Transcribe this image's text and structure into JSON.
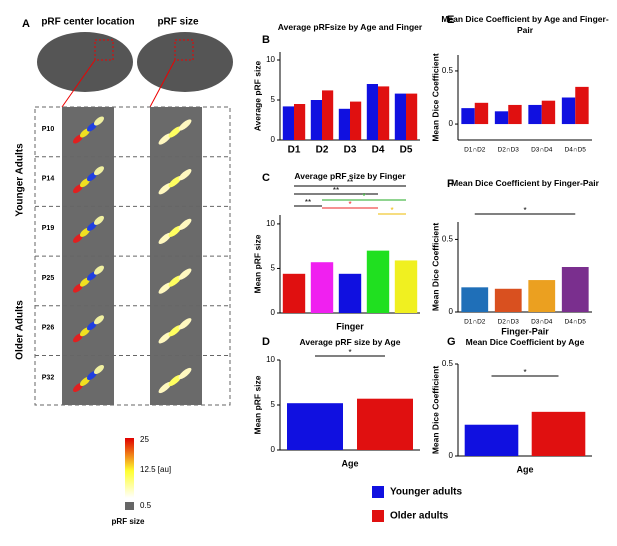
{
  "panel_labels": [
    "A",
    "B",
    "C",
    "D",
    "E",
    "F",
    "G"
  ],
  "panel_a": {
    "column_titles": [
      "pRF center location",
      "pRF size"
    ],
    "rows": [
      "P10",
      "P14",
      "P19",
      "P25",
      "P26",
      "P32"
    ],
    "groups": [
      "Younger Adults",
      "Older Adults"
    ],
    "colorbar": {
      "labels": [
        "25",
        "12.5 [au]",
        "0.5"
      ],
      "title": "pRF size"
    }
  },
  "chart_data": [
    {
      "type": "bar",
      "title": "Average pRFsize by Age and Finger",
      "ylabel": "Average pRF size",
      "categories": [
        "D1",
        "D2",
        "D3",
        "D4",
        "D5"
      ],
      "series": [
        {
          "name": "Younger adults",
          "color": "#1010e0",
          "values": [
            4.2,
            5.0,
            3.9,
            7.0,
            5.8
          ]
        },
        {
          "name": "Older adults",
          "color": "#e01010",
          "values": [
            4.5,
            6.2,
            4.8,
            6.7,
            5.8
          ]
        }
      ],
      "ylim": [
        0,
        11
      ],
      "yticks": [
        0,
        5,
        10
      ],
      "legend": "bottom"
    },
    {
      "type": "bar",
      "title": "Average pRF size by Finger",
      "ylabel": "Mean pRF size",
      "xlabel": "Finger",
      "categories": [
        null,
        null,
        null,
        null,
        null
      ],
      "values": [
        4.4,
        5.7,
        4.4,
        7.0,
        5.9
      ],
      "colors": [
        "#e01010",
        "#f020f0",
        "#1010e0",
        "#20e020",
        "#f0f020"
      ],
      "ylim": [
        0,
        11
      ],
      "yticks": [
        0,
        5,
        10
      ],
      "annotations": [
        "**",
        "**",
        "**",
        "*",
        "*",
        "*"
      ]
    },
    {
      "type": "bar",
      "title": "Average pRF size by Age",
      "ylabel": "Mean pRF size",
      "xlabel": "Age",
      "categories": [
        null,
        null
      ],
      "values": [
        5.2,
        5.7
      ],
      "colors": [
        "#1010e0",
        "#e01010"
      ],
      "ylim": [
        0,
        10
      ],
      "yticks": [
        0,
        5,
        10
      ],
      "annotations": [
        "*"
      ]
    },
    {
      "type": "bar",
      "title": "Mean Dice Coefficient by Age and Finger-Pair",
      "ylabel": "Mean Dice Coefficient",
      "categories": [
        "D1∩D2",
        "D2∩D3",
        "D3∩D4",
        "D4∩D5"
      ],
      "series": [
        {
          "name": "Younger adults",
          "color": "#1010e0",
          "values": [
            0.15,
            0.12,
            0.18,
            0.25
          ]
        },
        {
          "name": "Older adults",
          "color": "#e01010",
          "values": [
            0.2,
            0.18,
            0.22,
            0.35
          ]
        }
      ],
      "ylim": [
        -0.15,
        0.65
      ],
      "yticks": [
        0,
        0.5
      ]
    },
    {
      "type": "bar",
      "title": "Mean Dice Coefficient by Finger-Pair",
      "ylabel": "Mean Dice Coefficient",
      "xlabel": "Finger-Pair",
      "categories": [
        "D1∩D2",
        "D2∩D3",
        "D3∩D4",
        "D4∩D5"
      ],
      "values": [
        0.17,
        0.16,
        0.22,
        0.31
      ],
      "colors": [
        "#1f6fb8",
        "#d9501f",
        "#eba020",
        "#7a2f8e"
      ],
      "ylim": [
        0,
        0.62
      ],
      "yticks": [
        0,
        0.5
      ],
      "annotations": [
        "*"
      ]
    },
    {
      "type": "bar",
      "title": "Mean Dice Coefficient by Age",
      "ylabel": "Mean Dice Coefficient",
      "xlabel": "Age",
      "categories": [
        null,
        null
      ],
      "values": [
        0.17,
        0.24
      ],
      "colors": [
        "#1010e0",
        "#e01010"
      ],
      "ylim": [
        0,
        0.5
      ],
      "yticks": [
        0,
        0.5
      ],
      "annotations": [
        "*"
      ]
    }
  ]
}
